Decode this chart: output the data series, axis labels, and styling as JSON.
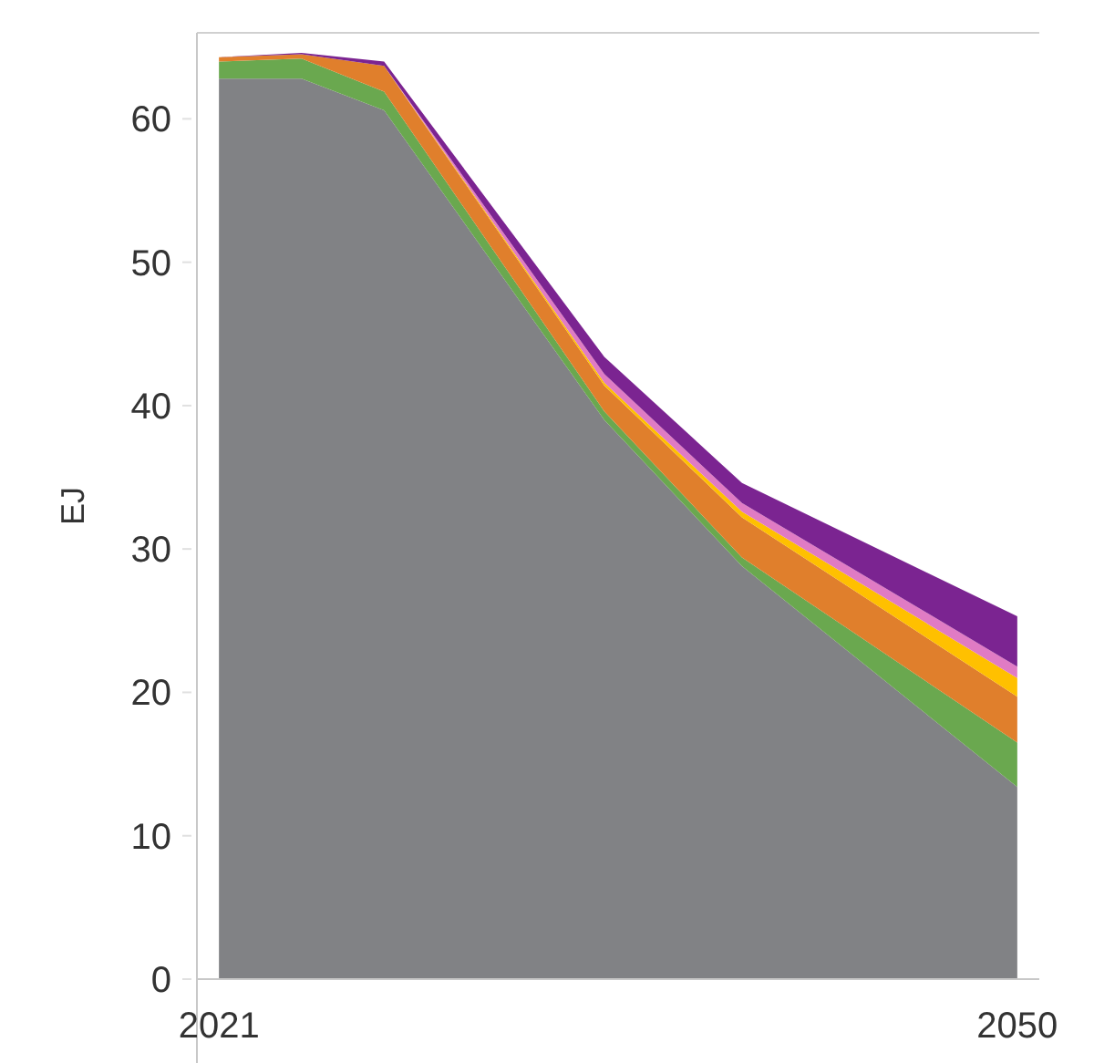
{
  "chart_data": {
    "type": "area",
    "stacked": true,
    "ylabel": "EJ",
    "x": [
      2021,
      2024,
      2027,
      2035,
      2040,
      2050
    ],
    "xlim": [
      2020.2,
      2050.8
    ],
    "xticks": [
      2021,
      2050
    ],
    "ylim": [
      0,
      66
    ],
    "yticks": [
      0,
      10,
      20,
      30,
      40,
      50,
      60
    ],
    "grid": false,
    "series": [
      {
        "color": "#818285",
        "values": [
          62.8,
          62.8,
          60.6,
          39.0,
          28.8,
          13.4
        ]
      },
      {
        "color": "#6aa84f",
        "values": [
          1.2,
          1.4,
          1.3,
          0.6,
          0.6,
          3.1
        ]
      },
      {
        "color": "#e07f2c",
        "values": [
          0.3,
          0.3,
          1.8,
          1.8,
          2.8,
          3.2
        ]
      },
      {
        "color": "#ffc000",
        "values": [
          0,
          0,
          0,
          0.2,
          0.4,
          1.3
        ]
      },
      {
        "color": "#e07bc4",
        "values": [
          0,
          0,
          0,
          0.6,
          0.6,
          0.8
        ]
      },
      {
        "color": "#7b2491",
        "values": [
          0,
          0.1,
          0.3,
          1.2,
          1.4,
          3.5
        ]
      }
    ]
  }
}
